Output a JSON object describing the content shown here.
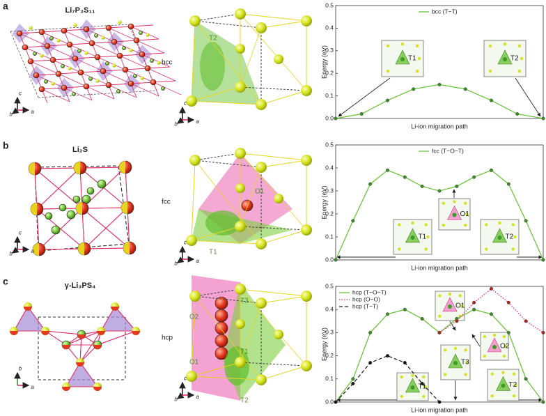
{
  "panels": [
    {
      "letter": "a",
      "compound": "Li₇P₃S₁₁",
      "lattice": "bcc",
      "structure_axes": [
        "c",
        "b",
        "a"
      ],
      "site_axes": [
        "c",
        "b",
        "a"
      ],
      "sites": [
        "T2"
      ]
    },
    {
      "letter": "b",
      "compound": "Li₂S",
      "lattice": "fcc",
      "structure_axes": [
        "c",
        "b",
        "a"
      ],
      "site_axes": [
        "c",
        "b",
        "a"
      ],
      "sites": [
        "O1",
        "T1"
      ]
    },
    {
      "letter": "c",
      "compound": "γ-Li₃PS₄",
      "lattice": "hcp",
      "structure_axes": [
        "b",
        "a"
      ],
      "site_axes": [
        "c",
        "b",
        "a"
      ],
      "sites": [
        "O2",
        "O1",
        "T3",
        "T1",
        "T2"
      ]
    }
  ],
  "chart_data": [
    {
      "type": "line",
      "xlabel": "Li-ion migration path",
      "ylabel": "Energy (eV)",
      "xlim": [
        0,
        8
      ],
      "ylim": [
        0,
        0.5
      ],
      "yticks": [
        {
          "value": 0,
          "label": "0.0"
        },
        0.1,
        0.2,
        0.3,
        0.4,
        0.5
      ],
      "legend": "upper center",
      "series": [
        {
          "name": "bcc (T−T)",
          "color": "#6cc33a",
          "marker_color": "#3f8a2a",
          "style": "solid",
          "x": [
            0,
            1,
            2,
            3,
            4,
            5,
            6,
            7,
            8
          ],
          "values": [
            0,
            0.02,
            0.08,
            0.13,
            0.15,
            0.13,
            0.08,
            0.02,
            0
          ]
        }
      ],
      "annotations": [
        "T1",
        "T2"
      ]
    },
    {
      "type": "line",
      "xlabel": "Li-ion migration path",
      "ylabel": "Energy (eV)",
      "xlim": [
        0,
        12
      ],
      "ylim": [
        0,
        0.5
      ],
      "yticks": [
        {
          "value": 0,
          "label": "0.0"
        },
        0.1,
        0.2,
        0.3,
        0.4,
        0.5
      ],
      "legend": "upper center",
      "series": [
        {
          "name": "fcc (T−O−T)",
          "color": "#6cc33a",
          "marker_color": "#3f8a2a",
          "style": "solid",
          "x": [
            0,
            1,
            2,
            3,
            4,
            5,
            6,
            7,
            8,
            9,
            10,
            11,
            12
          ],
          "values": [
            0,
            0.17,
            0.33,
            0.39,
            0.36,
            0.32,
            0.3,
            0.32,
            0.36,
            0.39,
            0.33,
            0.17,
            0
          ]
        }
      ],
      "annotations": [
        "T1",
        "O1",
        "T2"
      ]
    },
    {
      "type": "line",
      "xlabel": "Li-ion migration path",
      "ylabel": "Energy (eV)",
      "xlim": [
        0,
        24
      ],
      "ylim": [
        0,
        0.5
      ],
      "yticks": [
        {
          "value": 0,
          "label": "0.0"
        },
        0.1,
        0.2,
        0.3,
        0.4,
        0.5
      ],
      "legend": "upper left",
      "series": [
        {
          "name": "hcp (T−O−T)",
          "color": "#6cc33a",
          "marker_color": "#3f8a2a",
          "style": "solid",
          "x": [
            0,
            2,
            4,
            6,
            8,
            10,
            12,
            14,
            16,
            18,
            20,
            22,
            24
          ],
          "values": [
            0,
            0.1,
            0.3,
            0.38,
            0.4,
            0.36,
            0.3,
            0.36,
            0.4,
            0.38,
            0.3,
            0.1,
            0
          ]
        },
        {
          "name": "hcp (O−O)",
          "color": "#e0306a",
          "marker_color": "#b3261e",
          "style": "dotted",
          "x": [
            12,
            14,
            16,
            18,
            20,
            22,
            24
          ],
          "values": [
            0.3,
            0.35,
            0.43,
            0.49,
            0.43,
            0.35,
            0.3
          ]
        },
        {
          "name": "hcp (T−T)",
          "color": "#222222",
          "marker_color": "#111111",
          "style": "dashed",
          "x": [
            0,
            2,
            4,
            6,
            8,
            10,
            12
          ],
          "values": [
            0,
            0.08,
            0.17,
            0.2,
            0.17,
            0.08,
            0
          ]
        }
      ],
      "annotations": [
        "O1",
        "O2",
        "T1",
        "T3",
        "T2"
      ]
    }
  ]
}
